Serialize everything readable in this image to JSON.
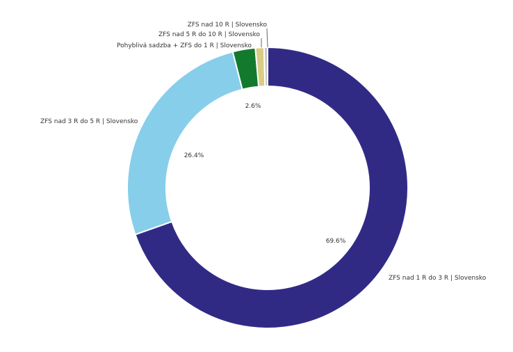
{
  "chart_data": {
    "type": "pie",
    "title": "",
    "series": [
      {
        "name": "ZFS nad 1 R do 3 R | Slovensko",
        "value": 69.6,
        "value_label": "69.6%",
        "color": "#312a85"
      },
      {
        "name": "ZFS nad 3 R do 5 R | Slovensko",
        "value": 26.4,
        "value_label": "26.4%",
        "color": "#87ceeb"
      },
      {
        "name": "Pohyblivá sadzba + ZFS do 1 R | Slovensko",
        "value": 2.6,
        "value_label": "2.6%",
        "color": "#127a2d"
      },
      {
        "name": "ZFS nad 5 R do 10 R | Slovensko",
        "value": 1.0,
        "value_label": "",
        "color": "#d9cc85"
      },
      {
        "name": "ZFS nad 10 R | Slovensko",
        "value": 0.4,
        "value_label": "",
        "color": "#c7c7c7"
      }
    ]
  }
}
